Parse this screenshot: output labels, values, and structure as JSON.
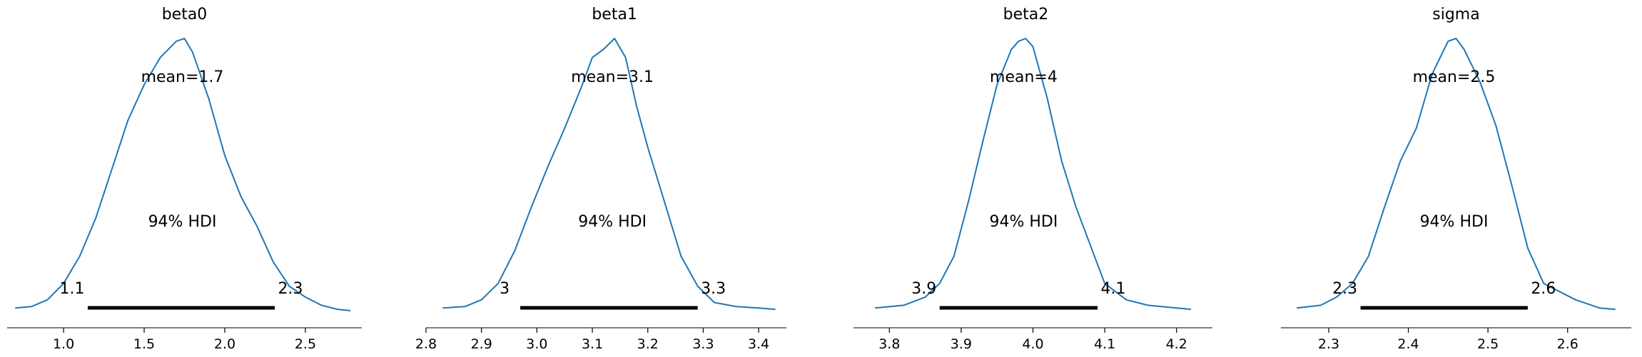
{
  "chart_data": [
    {
      "type": "line",
      "title": "beta0",
      "mean_label": "mean=1.7",
      "hdi_label": "94% HDI",
      "hdi": [
        1.15,
        2.31
      ],
      "hdi_lower_label": "1.1",
      "hdi_upper_label": "2.3",
      "xlim": [
        0.65,
        2.85
      ],
      "xticks": [
        1.0,
        1.5,
        2.0,
        2.5
      ],
      "xtick_labels": [
        "1.0",
        "1.5",
        "2.0",
        "2.5"
      ],
      "x": [
        0.7,
        0.8,
        0.9,
        1.0,
        1.1,
        1.2,
        1.3,
        1.4,
        1.5,
        1.6,
        1.7,
        1.75,
        1.8,
        1.9,
        2.0,
        2.1,
        2.2,
        2.3,
        2.4,
        2.5,
        2.6,
        2.7,
        2.78
      ],
      "y": [
        0.01,
        0.015,
        0.04,
        0.1,
        0.2,
        0.34,
        0.52,
        0.7,
        0.83,
        0.93,
        0.99,
        1.0,
        0.95,
        0.78,
        0.57,
        0.42,
        0.31,
        0.18,
        0.09,
        0.05,
        0.02,
        0.005,
        0.0
      ]
    },
    {
      "type": "line",
      "title": "beta1",
      "mean_label": "mean=3.1",
      "hdi_label": "94% HDI",
      "hdi": [
        2.97,
        3.29
      ],
      "hdi_lower_label": "3",
      "hdi_upper_label": "3.3",
      "xlim": [
        2.8,
        3.45
      ],
      "xticks": [
        2.8,
        2.9,
        3.0,
        3.1,
        3.2,
        3.3,
        3.4
      ],
      "xtick_labels": [
        "2.8",
        "2.9",
        "3.0",
        "3.1",
        "3.2",
        "3.3",
        "3.4"
      ],
      "x": [
        2.83,
        2.87,
        2.9,
        2.93,
        2.96,
        2.99,
        3.02,
        3.05,
        3.08,
        3.1,
        3.12,
        3.14,
        3.16,
        3.18,
        3.2,
        3.23,
        3.26,
        3.29,
        3.32,
        3.36,
        3.4,
        3.43
      ],
      "y": [
        0.01,
        0.015,
        0.04,
        0.1,
        0.22,
        0.38,
        0.53,
        0.67,
        0.82,
        0.93,
        0.96,
        1.0,
        0.93,
        0.75,
        0.6,
        0.4,
        0.2,
        0.09,
        0.03,
        0.015,
        0.01,
        0.005
      ]
    },
    {
      "type": "line",
      "title": "beta2",
      "mean_label": "mean=4",
      "hdi_label": "94% HDI",
      "hdi": [
        3.87,
        4.09
      ],
      "hdi_lower_label": "3.9",
      "hdi_upper_label": "4.1",
      "xlim": [
        3.75,
        4.25
      ],
      "xticks": [
        3.8,
        3.9,
        4.0,
        4.1,
        4.2
      ],
      "xtick_labels": [
        "3.8",
        "3.9",
        "4.0",
        "4.1",
        "4.2"
      ],
      "x": [
        3.78,
        3.82,
        3.85,
        3.87,
        3.89,
        3.91,
        3.93,
        3.95,
        3.97,
        3.98,
        3.99,
        4.0,
        4.02,
        4.04,
        4.06,
        4.08,
        4.1,
        4.13,
        4.16,
        4.2,
        4.22
      ],
      "y": [
        0.01,
        0.02,
        0.05,
        0.1,
        0.2,
        0.4,
        0.62,
        0.83,
        0.96,
        0.99,
        1.0,
        0.97,
        0.78,
        0.55,
        0.38,
        0.24,
        0.1,
        0.04,
        0.02,
        0.01,
        0.005
      ]
    },
    {
      "type": "line",
      "title": "sigma",
      "mean_label": "mean=2.5",
      "hdi_label": "94% HDI",
      "hdi": [
        2.34,
        2.55
      ],
      "hdi_lower_label": "2.3",
      "hdi_upper_label": "2.6",
      "xlim": [
        2.24,
        2.68
      ],
      "xticks": [
        2.3,
        2.4,
        2.5,
        2.6
      ],
      "xtick_labels": [
        "2.3",
        "2.4",
        "2.5",
        "2.6"
      ],
      "x": [
        2.26,
        2.29,
        2.31,
        2.33,
        2.35,
        2.37,
        2.39,
        2.41,
        2.43,
        2.45,
        2.46,
        2.47,
        2.49,
        2.51,
        2.53,
        2.55,
        2.57,
        2.59,
        2.61,
        2.64,
        2.66
      ],
      "y": [
        0.01,
        0.02,
        0.05,
        0.1,
        0.2,
        0.38,
        0.55,
        0.67,
        0.87,
        0.99,
        1.0,
        0.96,
        0.84,
        0.68,
        0.46,
        0.23,
        0.1,
        0.07,
        0.04,
        0.01,
        0.005
      ]
    }
  ],
  "colors": {
    "curve": "#1f77b4",
    "hdi": "#000000",
    "axis": "#000000"
  }
}
